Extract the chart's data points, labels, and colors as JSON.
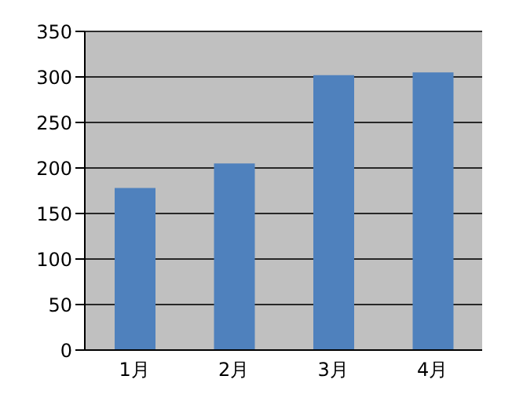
{
  "chart_data": {
    "type": "bar",
    "categories": [
      "1月",
      "2月",
      "3月",
      "4月"
    ],
    "values": [
      178,
      205,
      302,
      305
    ],
    "color": "#4f81bd",
    "ylim": [
      0,
      350
    ],
    "yticks": [
      0,
      50,
      100,
      150,
      200,
      250,
      300,
      350
    ],
    "grid": "y"
  }
}
